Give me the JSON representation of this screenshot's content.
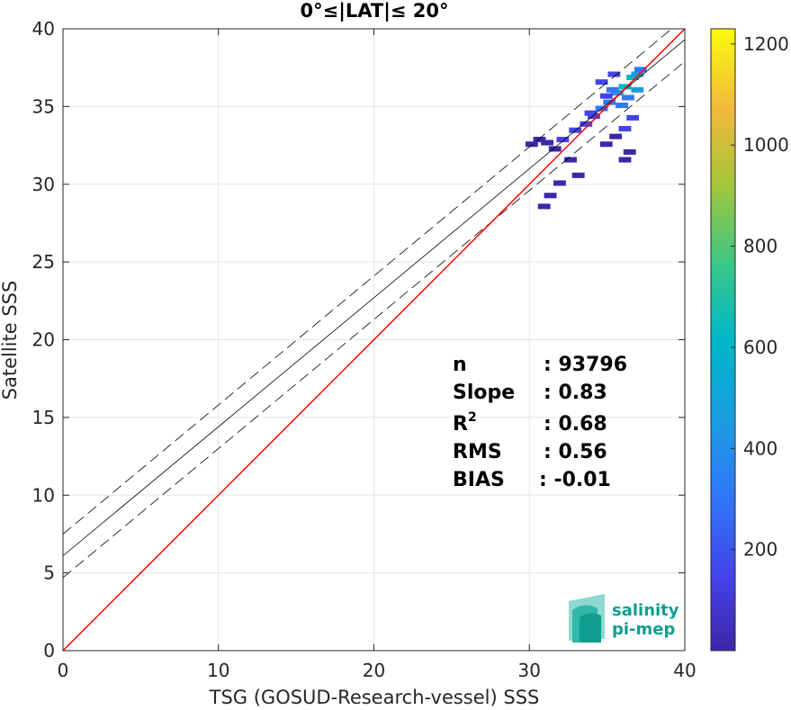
{
  "chart_data": {
    "type": "heatmap",
    "title": "0°≤|LAT|≤ 20°",
    "xlabel": "TSG (GOSUD-Research-vessel) SSS",
    "ylabel": "Satellite SSS",
    "xlim": [
      0,
      40
    ],
    "ylim": [
      0,
      40
    ],
    "xticks": [
      0,
      10,
      20,
      30,
      40
    ],
    "yticks": [
      0,
      5,
      10,
      15,
      20,
      25,
      30,
      35,
      40
    ],
    "grid": true,
    "lines": {
      "identity": {
        "slope": 1,
        "intercept": 0,
        "color": "#ff0000"
      },
      "fit": {
        "slope": 0.83,
        "intercept": 6.1,
        "color": "#000000"
      },
      "fit_upper": {
        "slope": 0.83,
        "intercept": 7.5,
        "style": "dashed"
      },
      "fit_lower": {
        "slope": 0.83,
        "intercept": 4.7,
        "style": "dashed"
      }
    },
    "density_cells": [
      {
        "x": 36.5,
        "y": 36.8,
        "v": 350
      },
      {
        "x": 36.0,
        "y": 36.2,
        "v": 420
      },
      {
        "x": 35.5,
        "y": 35.8,
        "v": 300
      },
      {
        "x": 36.8,
        "y": 37.0,
        "v": 250
      },
      {
        "x": 35.0,
        "y": 35.2,
        "v": 200
      },
      {
        "x": 34.5,
        "y": 34.8,
        "v": 150
      },
      {
        "x": 34.0,
        "y": 34.3,
        "v": 120
      },
      {
        "x": 33.5,
        "y": 33.8,
        "v": 90
      },
      {
        "x": 35.8,
        "y": 35.0,
        "v": 180
      },
      {
        "x": 36.2,
        "y": 35.5,
        "v": 220
      },
      {
        "x": 35.2,
        "y": 36.0,
        "v": 160
      },
      {
        "x": 34.8,
        "y": 35.6,
        "v": 110
      },
      {
        "x": 33.8,
        "y": 34.5,
        "v": 80
      },
      {
        "x": 32.8,
        "y": 33.4,
        "v": 60
      },
      {
        "x": 32.0,
        "y": 32.8,
        "v": 50
      },
      {
        "x": 31.5,
        "y": 32.2,
        "v": 40
      },
      {
        "x": 31.0,
        "y": 32.6,
        "v": 30
      },
      {
        "x": 30.5,
        "y": 32.8,
        "v": 25
      },
      {
        "x": 30.0,
        "y": 32.5,
        "v": 20
      },
      {
        "x": 32.5,
        "y": 31.5,
        "v": 25
      },
      {
        "x": 33.0,
        "y": 30.5,
        "v": 20
      },
      {
        "x": 31.8,
        "y": 30.0,
        "v": 20
      },
      {
        "x": 31.2,
        "y": 29.2,
        "v": 15
      },
      {
        "x": 30.8,
        "y": 28.5,
        "v": 15
      },
      {
        "x": 36.5,
        "y": 34.2,
        "v": 100
      },
      {
        "x": 36.0,
        "y": 33.5,
        "v": 60
      },
      {
        "x": 35.4,
        "y": 33.0,
        "v": 40
      },
      {
        "x": 34.8,
        "y": 32.5,
        "v": 30
      },
      {
        "x": 36.3,
        "y": 32.0,
        "v": 20
      },
      {
        "x": 36.0,
        "y": 31.5,
        "v": 15
      },
      {
        "x": 36.8,
        "y": 36.0,
        "v": 280
      },
      {
        "x": 37.0,
        "y": 37.3,
        "v": 200
      },
      {
        "x": 35.3,
        "y": 37.0,
        "v": 90
      },
      {
        "x": 34.5,
        "y": 36.5,
        "v": 50
      }
    ],
    "colorbar": {
      "min": 0,
      "max": 1230,
      "ticks": [
        200,
        400,
        600,
        800,
        1000,
        1200
      ]
    },
    "stats": [
      {
        "label": "n",
        "value": ": 93796"
      },
      {
        "label": "Slope",
        "value": ": 0.83"
      },
      {
        "label": "R",
        "superscript": "2",
        "value": ": 0.68"
      },
      {
        "label": "RMS",
        "value": ": 0.56"
      },
      {
        "label": "BIAS",
        "value": ": -0.01"
      }
    ]
  },
  "logo": {
    "line1": "salinity",
    "line2": "pi-mep",
    "color": "#0e9e90"
  }
}
